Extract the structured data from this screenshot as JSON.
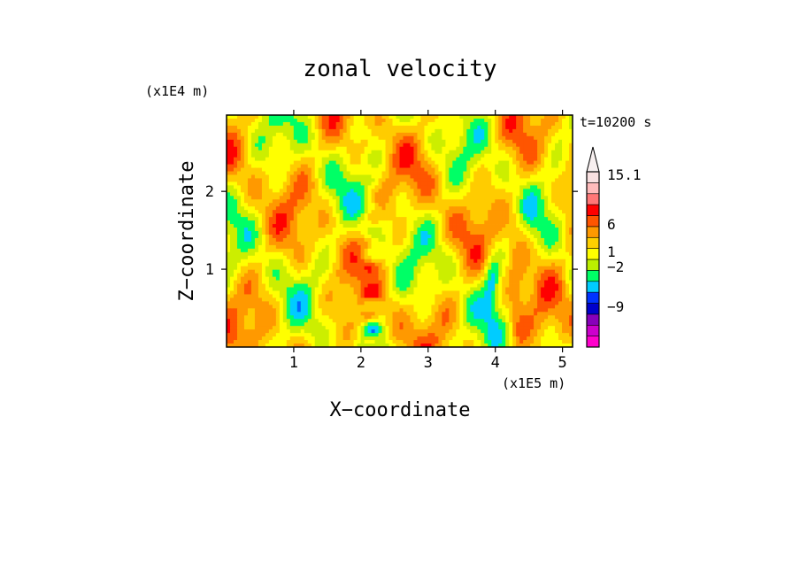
{
  "chart_data": {
    "type": "heatmap",
    "title": "zonal velocity",
    "xlabel": "X−coordinate",
    "ylabel": "Z−coordinate",
    "x_unit": "(x1E5 m)",
    "y_unit": "(x1E4 m)",
    "time_label": "t=10200 s",
    "xlim": [
      0,
      5.15
    ],
    "ylim": [
      0,
      2.98
    ],
    "x_ticks": [
      1,
      2,
      3,
      4,
      5
    ],
    "y_ticks": [
      1,
      2
    ],
    "colorbar": {
      "levels_from_bottom": [
        "#ff00cc",
        "#cc00cc",
        "#8800bb",
        "#0000cc",
        "#0033ff",
        "#00ccff",
        "#00ff66",
        "#bbee00",
        "#ffff00",
        "#ffd000",
        "#ff9900",
        "#ff5500",
        "#ff0000",
        "#ff7777",
        "#ffbbbb",
        "#f8e0e0"
      ],
      "labels": [
        "15.1",
        "6",
        "1",
        "−2",
        "−9"
      ],
      "extend_top": true
    },
    "field_palette": [
      "#0000cc",
      "#0066ff",
      "#00ccff",
      "#00ff66",
      "#ccee00",
      "#ffff00",
      "#ffcc00",
      "#ff9900",
      "#ff5500",
      "#ff0000"
    ]
  }
}
